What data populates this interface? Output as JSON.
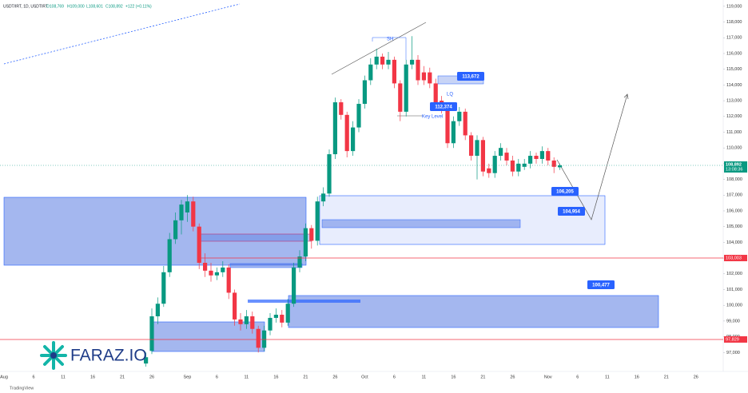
{
  "header": {
    "symbol": "USDT/IRT, 1D, USDTIRT",
    "open": "O108,769",
    "high": "H109,000",
    "low": "L108,601",
    "close": "C108,892",
    "change": "+122 (+0.11%)"
  },
  "chart_data": {
    "type": "candlestick",
    "categories": [
      "Aug",
      null,
      null,
      null,
      null,
      "6",
      null,
      null,
      null,
      null,
      "11",
      null,
      null,
      null,
      null,
      "16",
      null,
      null,
      null,
      null,
      "21",
      null,
      null,
      null,
      null,
      "26",
      null,
      null,
      null,
      null,
      null,
      "Sep",
      null,
      null,
      null,
      null,
      "6",
      null,
      null,
      null,
      null,
      "11",
      null,
      null,
      null,
      null,
      "16",
      null,
      null,
      null,
      null,
      "21",
      null,
      null,
      null,
      null,
      "26",
      null,
      null,
      null,
      null,
      "Oct",
      null,
      null,
      null,
      null,
      "6",
      null,
      null,
      null,
      null,
      "11",
      null,
      null,
      null,
      null,
      "16",
      null,
      null,
      null,
      null,
      "21",
      null,
      null,
      null,
      null,
      "26",
      null,
      null,
      null,
      null,
      null,
      "Nov",
      null,
      null,
      null,
      null,
      "6",
      null,
      null,
      null,
      null,
      "11",
      null,
      null,
      null,
      null,
      "16",
      null,
      null,
      null,
      null,
      "21",
      null,
      null,
      null,
      null,
      "26",
      null,
      null,
      null,
      null
    ],
    "open": [
      null,
      null,
      null,
      null,
      null,
      null,
      null,
      null,
      null,
      null,
      null,
      null,
      null,
      null,
      null,
      null,
      null,
      null,
      null,
      null,
      null,
      null,
      null,
      null,
      96300,
      97100,
      99300,
      100100,
      102100,
      104200,
      105400,
      105900,
      106600,
      105000,
      102700,
      102200,
      101900,
      102100,
      102400,
      100800,
      99100,
      98800,
      99300,
      98500,
      97300,
      98400,
      99200,
      99400,
      98900,
      100100,
      102400,
      103100,
      104900,
      104100,
      106600,
      107100,
      109600,
      112900,
      112100,
      109800,
      111300,
      112800,
      114300,
      115300,
      115800,
      115300,
      115600,
      114100,
      112300,
      115300,
      115600,
      114800,
      114800,
      114100,
      113000,
      112500,
      110300,
      111700,
      112300,
      110800,
      109500,
      110500,
      108700,
      108400,
      109500,
      109700,
      109200,
      108500,
      108800,
      109000,
      109500,
      109300,
      109800,
      109200,
      108769,
      null,
      null,
      null,
      null,
      null,
      null,
      null,
      null,
      null,
      null,
      null,
      null,
      null,
      null,
      null,
      null,
      null,
      null,
      null,
      null,
      null,
      null,
      null,
      null,
      null,
      null,
      null
    ],
    "high": [
      null,
      null,
      null,
      null,
      null,
      null,
      null,
      null,
      null,
      null,
      null,
      null,
      null,
      null,
      null,
      null,
      null,
      null,
      null,
      null,
      null,
      null,
      null,
      null,
      97000,
      99800,
      100500,
      102500,
      104600,
      105900,
      106700,
      107000,
      106900,
      105200,
      103300,
      102700,
      102400,
      102800,
      102600,
      101000,
      99500,
      99700,
      99600,
      98700,
      98700,
      99500,
      99800,
      99700,
      100400,
      102700,
      103500,
      105200,
      105100,
      106900,
      107500,
      109900,
      113200,
      113100,
      112300,
      111700,
      113100,
      114600,
      115700,
      116300,
      116000,
      116100,
      115800,
      114300,
      115600,
      117100,
      115900,
      115200,
      115100,
      114400,
      113300,
      112800,
      112000,
      112600,
      112500,
      111000,
      110800,
      110700,
      109000,
      109800,
      110300,
      110000,
      109500,
      109300,
      109300,
      109800,
      109700,
      110100,
      110000,
      109400,
      109000,
      null,
      null,
      null,
      null,
      null,
      null,
      null,
      null,
      null,
      null,
      null,
      null,
      null,
      null,
      null,
      null,
      null,
      null,
      null,
      null,
      null,
      null,
      null,
      null,
      null,
      null,
      null
    ],
    "low": [
      null,
      null,
      null,
      null,
      null,
      null,
      null,
      null,
      null,
      null,
      null,
      null,
      null,
      null,
      null,
      null,
      null,
      null,
      null,
      null,
      null,
      null,
      null,
      null,
      96100,
      96900,
      98800,
      99900,
      101800,
      103900,
      104500,
      105300,
      104700,
      102300,
      101800,
      101500,
      101600,
      101800,
      100400,
      98700,
      98400,
      98500,
      98200,
      97000,
      97100,
      98100,
      98900,
      98600,
      98700,
      99900,
      102100,
      102800,
      103600,
      103800,
      106300,
      106900,
      109300,
      111800,
      109400,
      109500,
      111000,
      112500,
      114000,
      115000,
      115000,
      115000,
      113800,
      111700,
      112000,
      115000,
      114000,
      114000,
      113800,
      112500,
      112200,
      110000,
      110000,
      111400,
      110500,
      109200,
      108000,
      108200,
      108100,
      108100,
      109200,
      108900,
      108200,
      108200,
      108600,
      108700,
      109000,
      109000,
      108900,
      108400,
      108601,
      null,
      null,
      null,
      null,
      null,
      null,
      null,
      null,
      null,
      null,
      null,
      null,
      null,
      null,
      null,
      null,
      null,
      null,
      null,
      null,
      null,
      null,
      null,
      null,
      null,
      null,
      null
    ],
    "close": [
      null,
      null,
      null,
      null,
      null,
      null,
      null,
      null,
      null,
      null,
      null,
      null,
      null,
      null,
      null,
      null,
      null,
      null,
      null,
      null,
      null,
      null,
      null,
      null,
      96700,
      99300,
      100100,
      102100,
      104200,
      105400,
      106400,
      106600,
      105000,
      102700,
      102200,
      101900,
      102100,
      102400,
      100800,
      99100,
      98800,
      99300,
      98500,
      97300,
      98400,
      99200,
      99400,
      98900,
      100100,
      102400,
      103100,
      104900,
      104100,
      106600,
      107100,
      109600,
      112900,
      112100,
      109800,
      111300,
      112800,
      114300,
      115300,
      115800,
      115300,
      115600,
      114100,
      112300,
      115300,
      115600,
      114300,
      114300,
      114100,
      112800,
      112500,
      110300,
      111700,
      112300,
      110800,
      109500,
      110500,
      108500,
      108400,
      109500,
      110000,
      109200,
      108500,
      109000,
      109000,
      109500,
      109300,
      109800,
      109200,
      108800,
      108892,
      null,
      null,
      null,
      null,
      null,
      null,
      null,
      null,
      null,
      null,
      null,
      null,
      null,
      null,
      null,
      null,
      null,
      null,
      null,
      null,
      null,
      null,
      null,
      null,
      null,
      null,
      null
    ],
    "up_color": "#089981",
    "down_color": "#f23645",
    "ylim": [
      96000,
      119400
    ],
    "yticks": [
      {
        "value": 97000,
        "label": "97,000"
      },
      {
        "value": 98000,
        "label": "98,000"
      },
      {
        "value": 99000,
        "label": "99,000"
      },
      {
        "value": 100000,
        "label": "100,000"
      },
      {
        "value": 101000,
        "label": "101,000"
      },
      {
        "value": 102000,
        "label": "102,000"
      },
      {
        "value": 103000,
        "label": "103,000"
      },
      {
        "value": 104000,
        "label": "104,000"
      },
      {
        "value": 105000,
        "label": "105,000"
      },
      {
        "value": 106000,
        "label": "106,000"
      },
      {
        "value": 107000,
        "label": "107,000"
      },
      {
        "value": 108000,
        "label": "108,000"
      },
      {
        "value": 109000,
        "label": "109,000"
      },
      {
        "value": 110000,
        "label": "110,000"
      },
      {
        "value": 111000,
        "label": "111,000"
      },
      {
        "value": 112000,
        "label": "112,000"
      },
      {
        "value": 113000,
        "label": "113,000"
      },
      {
        "value": 114000,
        "label": "114,000"
      },
      {
        "value": 115000,
        "label": "115,000"
      },
      {
        "value": 116000,
        "label": "116,000"
      },
      {
        "value": 117000,
        "label": "117,000"
      },
      {
        "value": 118000,
        "label": "118,000"
      },
      {
        "value": 119000,
        "label": "119,000"
      }
    ],
    "grid": false,
    "levels": [
      {
        "value": 103003,
        "label": "103,003",
        "color": "#f23645"
      },
      {
        "value": 97829,
        "label": "97,829",
        "color": "#f23645"
      }
    ],
    "last_price": {
      "value": 108892,
      "label": "108,892",
      "countdown": "13:08:36",
      "color": "#089981"
    },
    "annotations": {
      "sh": "SH",
      "lq": "LQ",
      "key_level": "Key Level"
    },
    "callouts": [
      "113,672",
      "112,374",
      "106,205",
      "104,954",
      "100,477"
    ]
  },
  "watermark": {
    "brand": "FARAZ.IO",
    "platform": "TradingView"
  }
}
